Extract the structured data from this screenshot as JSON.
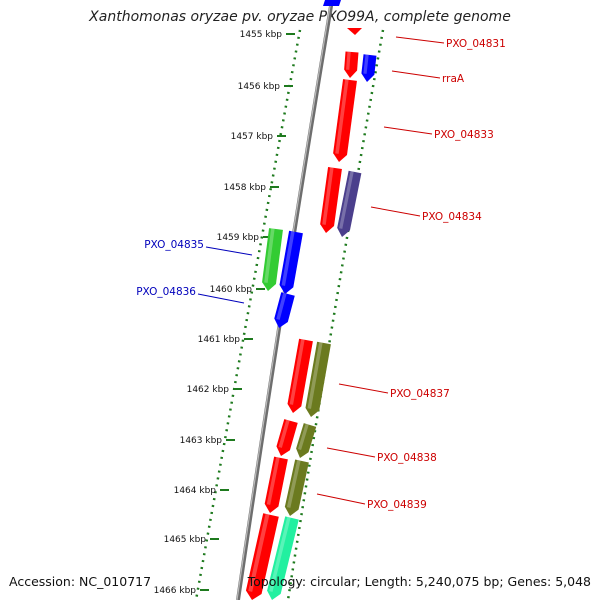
{
  "title": "Xanthomonas oryzae pv. oryzae PXO99A, complete genome",
  "footer": {
    "accession": "Accession: NC_010717",
    "summary": "Topology: circular; Length: 5,240,075 bp; Genes: 5,048"
  },
  "colors": {
    "cds_forward": "#ff0000",
    "blue_gene": "#0000ff",
    "green_gene": "#33cc33",
    "olive_gene": "#6b7a1f",
    "lime_gene": "#ccff33",
    "slate_gene": "#4b3f8c",
    "teal_gene": "#22f0a0",
    "ruler": "#1e7a1e",
    "label_red": "#cc0000",
    "label_blue": "#0000bb",
    "backbone": "#888888"
  },
  "ruler": {
    "unit": "kbp",
    "ticks": [
      "1455 kbp",
      "1456 kbp",
      "1457 kbp",
      "1458 kbp",
      "1459 kbp",
      "1460 kbp",
      "1461 kbp",
      "1462 kbp",
      "1463 kbp",
      "1464 kbp",
      "1465 kbp",
      "1466 kbp"
    ]
  },
  "labels": {
    "right": [
      "PXO_04831",
      "rraA",
      "PXO_04833",
      "PXO_04834",
      "PXO_04837",
      "PXO_04838",
      "PXO_04839"
    ],
    "left": [
      "PXO_04835",
      "PXO_04836"
    ]
  }
}
